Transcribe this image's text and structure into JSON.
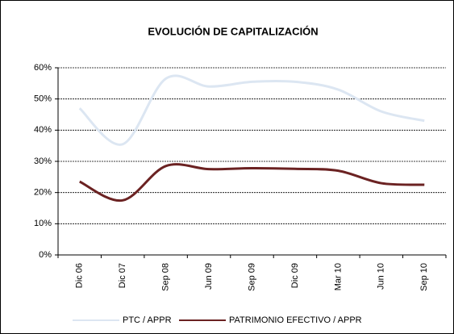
{
  "chart_data": {
    "type": "line",
    "title": "EVOLUCIÓN DE CAPITALIZACIÓN",
    "categories": [
      "Dic 06",
      "Dic 07",
      "Sep 08",
      "Jun 09",
      "Sep 09",
      "Dic 09",
      "Mar 10",
      "Jun 10",
      "Sep 10"
    ],
    "series": [
      {
        "name": "PTC / APPR",
        "color": "#dce6f2",
        "values": [
          47,
          35.5,
          56.5,
          54,
          55.5,
          55.5,
          53,
          46,
          43
        ]
      },
      {
        "name": "PATRIMONIO EFECTIVO / APPR",
        "color": "#6b2222",
        "values": [
          23.5,
          17.5,
          28.5,
          27.5,
          27.8,
          27.6,
          27,
          23,
          22.5
        ]
      }
    ],
    "ylim": [
      0,
      60
    ],
    "yticks": [
      {
        "value": 0,
        "label": "0%"
      },
      {
        "value": 10,
        "label": "10%"
      },
      {
        "value": 20,
        "label": "20%"
      },
      {
        "value": 30,
        "label": "30%"
      },
      {
        "value": 40,
        "label": "40%"
      },
      {
        "value": 50,
        "label": "50%"
      },
      {
        "value": 60,
        "label": "60%"
      }
    ],
    "grid": true,
    "legend": "bottom"
  }
}
